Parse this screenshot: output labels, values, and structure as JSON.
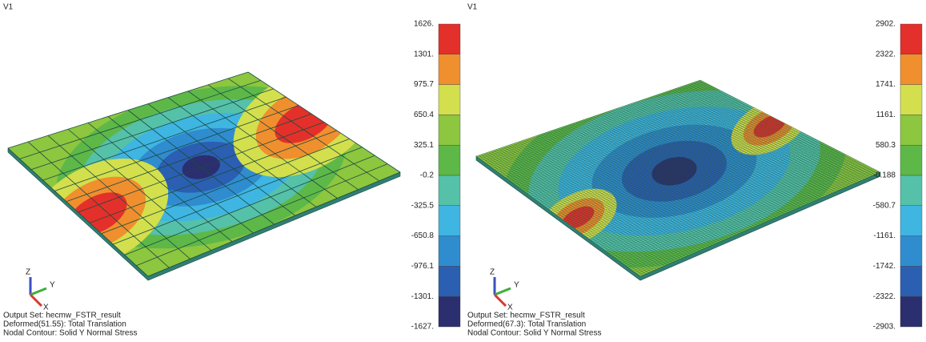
{
  "panels": [
    {
      "view": "V1",
      "legend_labels": [
        "1626.",
        "1301.",
        "975.7",
        "650.4",
        "325.1",
        "-0.2",
        "-325.5",
        "-650.8",
        "-976.1",
        "-1301.",
        "-1627."
      ],
      "info": [
        "Output Set: hecmw_FSTR_result",
        "Deformed(51.55): Total Translation",
        "Nodal Contour: Solid Y Normal Stress"
      ],
      "axes": [
        "Z",
        "Y",
        "X"
      ]
    },
    {
      "view": "V1",
      "legend_labels": [
        "2902.",
        "2322.",
        "1741.",
        "1161.",
        "580.3",
        "-0.188",
        "-580.7",
        "-1161.",
        "-1742.",
        "-2322.",
        "-2903."
      ],
      "info": [
        "Output Set: hecmw_FSTR_result",
        "Deformed(67.3): Total Translation",
        "Nodal Contour: Solid Y Normal Stress"
      ],
      "axes": [
        "Z",
        "Y",
        "X"
      ]
    }
  ],
  "legend_colors": [
    "#e3302a",
    "#f08f2d",
    "#d3df4c",
    "#8dc63f",
    "#5db848",
    "#55c1a9",
    "#3fb5e2",
    "#2f8ccf",
    "#2b5fb1",
    "#2b2f6f"
  ]
}
